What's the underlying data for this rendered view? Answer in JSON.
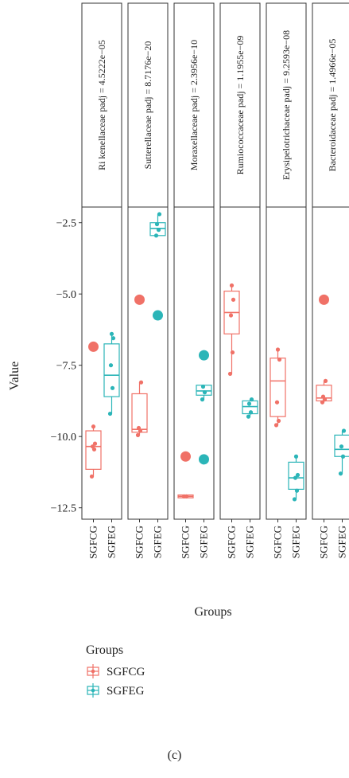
{
  "chart_data": {
    "type": "box",
    "ylabel": "Value",
    "xlabel": "Groups",
    "ylim": [
      -12.9,
      -1.95
    ],
    "yticks": [
      -2.5,
      -5.0,
      -7.5,
      -10.0,
      -12.5
    ],
    "ytick_labels": [
      "−2.5",
      "−5.0",
      "−7.5",
      "−10.0",
      "−12.5"
    ],
    "categories": [
      "SGFCG",
      "SGFEG"
    ],
    "colors": {
      "SGFCG": "#f07167",
      "SGFEG": "#2bb5b8"
    },
    "legend": {
      "title": "Groups",
      "position": "bottom-left",
      "items": [
        "SGFCG",
        "SGFEG"
      ]
    },
    "caption": "(c)",
    "panels": [
      {
        "title": "Ri kenellaceae padj = 4.5222e−05",
        "boxes": [
          {
            "group": "SGFCG",
            "q1": -11.15,
            "median": -10.35,
            "q3": -9.8,
            "whisker_low": -11.4,
            "whisker_high": -9.65,
            "outliers": [
              -6.85
            ],
            "points": [
              -11.4,
              -10.45,
              -10.35,
              -10.25,
              -9.65
            ]
          },
          {
            "group": "SGFEG",
            "q1": -8.6,
            "median": -7.85,
            "q3": -6.75,
            "whisker_low": -9.2,
            "whisker_high": -6.4,
            "outliers": [],
            "points": [
              -9.2,
              -8.3,
              -7.5,
              -6.55,
              -6.4
            ]
          }
        ]
      },
      {
        "title": "Sutterellaceae padj = 8.7176e−20",
        "boxes": [
          {
            "group": "SGFCG",
            "q1": -9.85,
            "median": -9.75,
            "q3": -8.5,
            "whisker_low": -9.95,
            "whisker_high": -8.1,
            "outliers": [
              -5.2
            ],
            "points": [
              -9.95,
              -9.8,
              -9.7,
              -8.1
            ]
          },
          {
            "group": "SGFEG",
            "q1": -2.95,
            "median": -2.7,
            "q3": -2.5,
            "whisker_low": -2.95,
            "whisker_high": -2.2,
            "outliers": [
              -5.75
            ],
            "points": [
              -2.95,
              -2.75,
              -2.55,
              -2.2
            ]
          }
        ]
      },
      {
        "title": "Moraxellaceae padj = 2.3956e−10",
        "boxes": [
          {
            "group": "SGFCG",
            "q1": -12.15,
            "median": -12.1,
            "q3": -12.05,
            "whisker_low": -12.15,
            "whisker_high": -12.05,
            "outliers": [
              -10.7
            ],
            "points": [
              -12.1,
              -12.1
            ]
          },
          {
            "group": "SGFEG",
            "q1": -8.55,
            "median": -8.4,
            "q3": -8.2,
            "whisker_low": -8.7,
            "whisker_high": -8.2,
            "outliers": [
              -7.15,
              -10.8
            ],
            "points": [
              -8.7,
              -8.45,
              -8.25
            ]
          }
        ]
      },
      {
        "title": "Rumiococcaceae padj = 1.1955e−09",
        "boxes": [
          {
            "group": "SGFCG",
            "q1": -6.4,
            "median": -5.65,
            "q3": -4.9,
            "whisker_low": -7.8,
            "whisker_high": -4.65,
            "outliers": [],
            "points": [
              -7.8,
              -7.05,
              -5.75,
              -5.2,
              -4.7
            ]
          },
          {
            "group": "SGFEG",
            "q1": -9.2,
            "median": -8.95,
            "q3": -8.75,
            "whisker_low": -9.3,
            "whisker_high": -8.7,
            "outliers": [],
            "points": [
              -9.3,
              -9.15,
              -8.85,
              -8.7
            ]
          }
        ]
      },
      {
        "title": "Erysipelotrichaceae padj = 9.2593e−08",
        "boxes": [
          {
            "group": "SGFCG",
            "q1": -9.3,
            "median": -8.05,
            "q3": -7.25,
            "whisker_low": -9.6,
            "whisker_high": -6.95,
            "outliers": [],
            "points": [
              -9.6,
              -9.45,
              -8.8,
              -7.3,
              -6.95
            ]
          },
          {
            "group": "SGFEG",
            "q1": -11.85,
            "median": -11.45,
            "q3": -10.9,
            "whisker_low": -12.2,
            "whisker_high": -10.7,
            "outliers": [],
            "points": [
              -12.2,
              -11.9,
              -11.45,
              -11.35,
              -10.7
            ]
          }
        ]
      },
      {
        "title": "Bacteroidaceae padj = 1.4966e−05",
        "boxes": [
          {
            "group": "SGFCG",
            "q1": -8.75,
            "median": -8.65,
            "q3": -8.2,
            "whisker_low": -8.8,
            "whisker_high": -8.05,
            "outliers": [
              -5.2
            ],
            "points": [
              -8.8,
              -8.7,
              -8.6,
              -8.05
            ]
          },
          {
            "group": "SGFEG",
            "q1": -10.7,
            "median": -10.45,
            "q3": -9.95,
            "whisker_low": -11.3,
            "whisker_high": -9.8,
            "outliers": [],
            "points": [
              -11.3,
              -10.7,
              -10.35,
              -9.8
            ]
          }
        ]
      }
    ]
  }
}
